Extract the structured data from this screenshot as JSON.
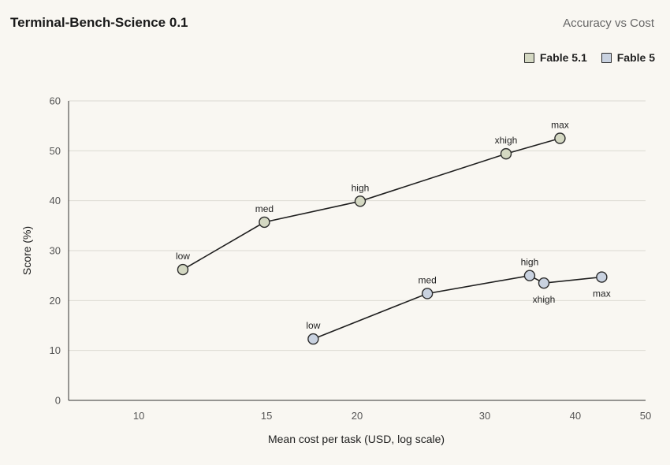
{
  "title": "Terminal-Bench-Science 0.1",
  "subtitle": "Accuracy vs Cost",
  "legend": [
    {
      "name": "Fable 5.1",
      "color": "#d4d8c2"
    },
    {
      "name": "Fable 5",
      "color": "#c9d2e0"
    }
  ],
  "chart_data": {
    "type": "scatter",
    "title": "Terminal-Bench-Science 0.1",
    "subtitle": "Accuracy vs Cost",
    "xlabel": "Mean cost per task (USD, log scale)",
    "ylabel": "Score (%)",
    "x_scale": "log",
    "xlim": [
      8,
      50
    ],
    "ylim": [
      0,
      60
    ],
    "x_ticks": [
      10,
      15,
      20,
      30,
      40,
      50
    ],
    "y_ticks": [
      0,
      10,
      20,
      30,
      40,
      50,
      60
    ],
    "grid": "horizontal",
    "legend_position": "top-right",
    "series": [
      {
        "name": "Fable 5.1",
        "color": "#d4d8c2",
        "points": [
          {
            "label": "low",
            "x": 11.5,
            "y": 26.2,
            "label_pos": "above"
          },
          {
            "label": "med",
            "x": 14.9,
            "y": 35.7,
            "label_pos": "above"
          },
          {
            "label": "high",
            "x": 20.2,
            "y": 39.9,
            "label_pos": "above"
          },
          {
            "label": "xhigh",
            "x": 32.1,
            "y": 49.4,
            "label_pos": "above"
          },
          {
            "label": "max",
            "x": 38.1,
            "y": 52.5,
            "label_pos": "above"
          }
        ]
      },
      {
        "name": "Fable 5",
        "color": "#c9d2e0",
        "points": [
          {
            "label": "low",
            "x": 17.4,
            "y": 12.3,
            "label_pos": "above"
          },
          {
            "label": "med",
            "x": 25.0,
            "y": 21.4,
            "label_pos": "above"
          },
          {
            "label": "high",
            "x": 34.6,
            "y": 25.0,
            "label_pos": "above"
          },
          {
            "label": "xhigh",
            "x": 36.2,
            "y": 23.5,
            "label_pos": "below"
          },
          {
            "label": "max",
            "x": 43.5,
            "y": 24.7,
            "label_pos": "below"
          }
        ]
      }
    ]
  }
}
